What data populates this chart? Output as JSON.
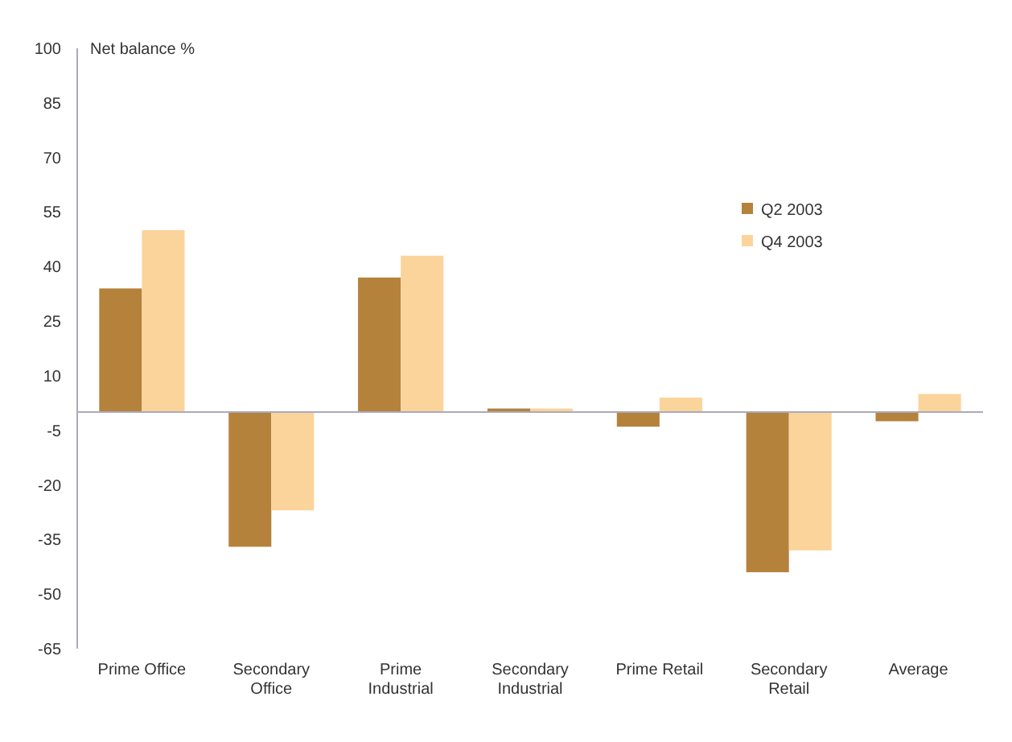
{
  "chart_data": {
    "type": "bar",
    "ylabel": "Net balance %",
    "categories": [
      "Prime Office",
      "Secondary Office",
      "Prime Industrial",
      "Secondary Industrial",
      "Prime Retail",
      "Secondary Retail",
      "Average"
    ],
    "series": [
      {
        "name": "Q2 2003",
        "color": "#b5823c",
        "values": [
          34,
          -37,
          37,
          1,
          -4,
          -44,
          -2.5
        ]
      },
      {
        "name": "Q4 2003",
        "color": "#fbd49c",
        "values": [
          50,
          -27,
          43,
          1,
          4,
          -38,
          5
        ]
      }
    ],
    "ylim": [
      -65,
      100
    ],
    "yticks": [
      100,
      85,
      70,
      55,
      40,
      25,
      10,
      -5,
      -20,
      -35,
      -50,
      -65
    ],
    "grid": false,
    "legend": "top right"
  }
}
